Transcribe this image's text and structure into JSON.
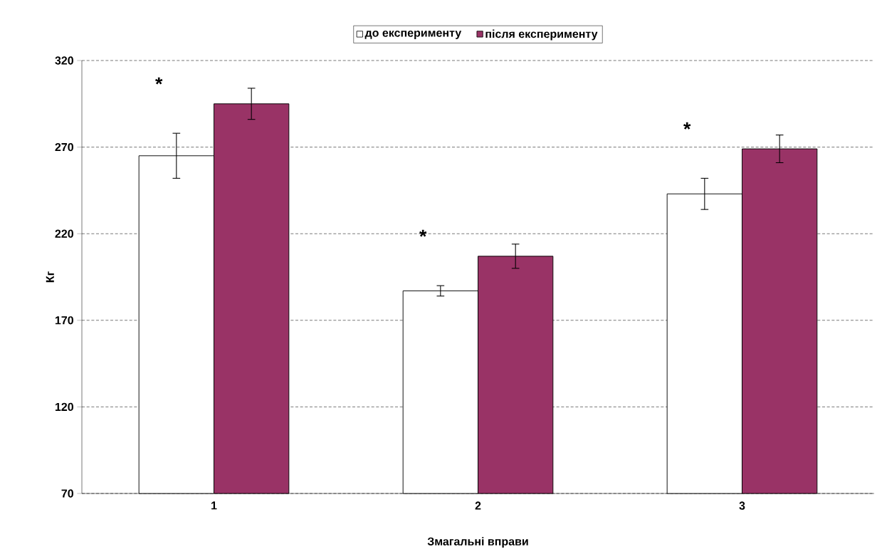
{
  "chart_data": {
    "type": "bar",
    "xlabel": "Змагальні вправи",
    "ylabel": "Кг",
    "categories": [
      "1",
      "2",
      "3"
    ],
    "series": [
      {
        "name": "до експерименту",
        "color": "#ffffff",
        "values": [
          265,
          187,
          243
        ],
        "errors": [
          13,
          3,
          9
        ]
      },
      {
        "name": "після експерименту",
        "color": "#993366",
        "values": [
          295,
          207,
          269
        ],
        "errors": [
          9,
          7,
          8
        ]
      }
    ],
    "ylim": [
      70,
      320
    ],
    "yticks": [
      70,
      120,
      170,
      220,
      270,
      320
    ],
    "grid": "y",
    "legend": "top",
    "annotations": [
      "*",
      "*",
      "*"
    ]
  }
}
